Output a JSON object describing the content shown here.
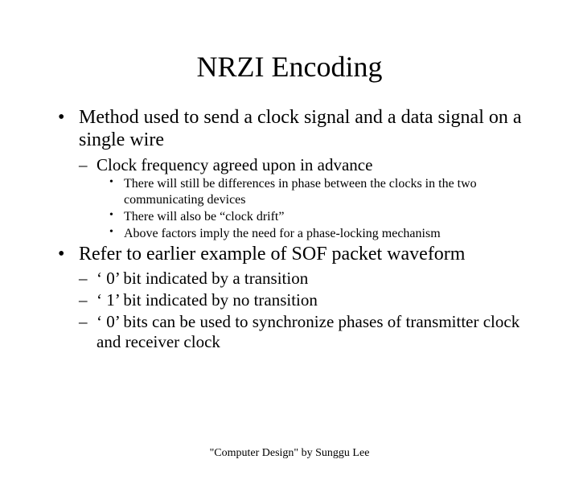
{
  "title": "NRZI Encoding",
  "bullets": {
    "l1_a": "Method used to send a clock signal and a data signal on a single wire",
    "l2_a": "Clock frequency agreed upon in advance",
    "l3_a": "There will still be differences in phase between the clocks in the two communicating devices",
    "l3_b": "There will also be “clock drift”",
    "l3_c": "Above factors imply the need for a phase-locking mechanism",
    "l1_b": "Refer to earlier example of SOF packet waveform",
    "l2_b": "‘ 0’ bit indicated by a transition",
    "l2_c": "‘ 1’ bit indicated by no transition",
    "l2_d": "‘ 0’ bits can be used to synchronize phases of transmitter clock and receiver clock"
  },
  "footer": "\"Computer Design\" by Sunggu Lee"
}
